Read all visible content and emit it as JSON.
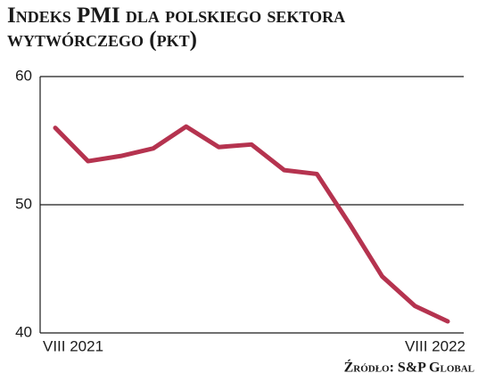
{
  "chart_data": {
    "type": "line",
    "title": "Indeks PMI dla polskiego sektora wytwórczego (pkt)",
    "source": "Źródło: S&P Global",
    "categories": [
      "VIII 2021",
      null,
      null,
      null,
      null,
      null,
      null,
      null,
      null,
      null,
      null,
      null,
      "VIII 2022"
    ],
    "series": [
      {
        "name": "PMI",
        "color": "#b5334f",
        "values": [
          56.0,
          53.4,
          53.8,
          54.4,
          56.1,
          54.5,
          54.7,
          52.7,
          52.4,
          48.5,
          44.4,
          42.1,
          40.9
        ]
      }
    ],
    "ylim": [
      40,
      60
    ],
    "yticks": [
      40,
      50,
      60
    ],
    "grid": true
  }
}
